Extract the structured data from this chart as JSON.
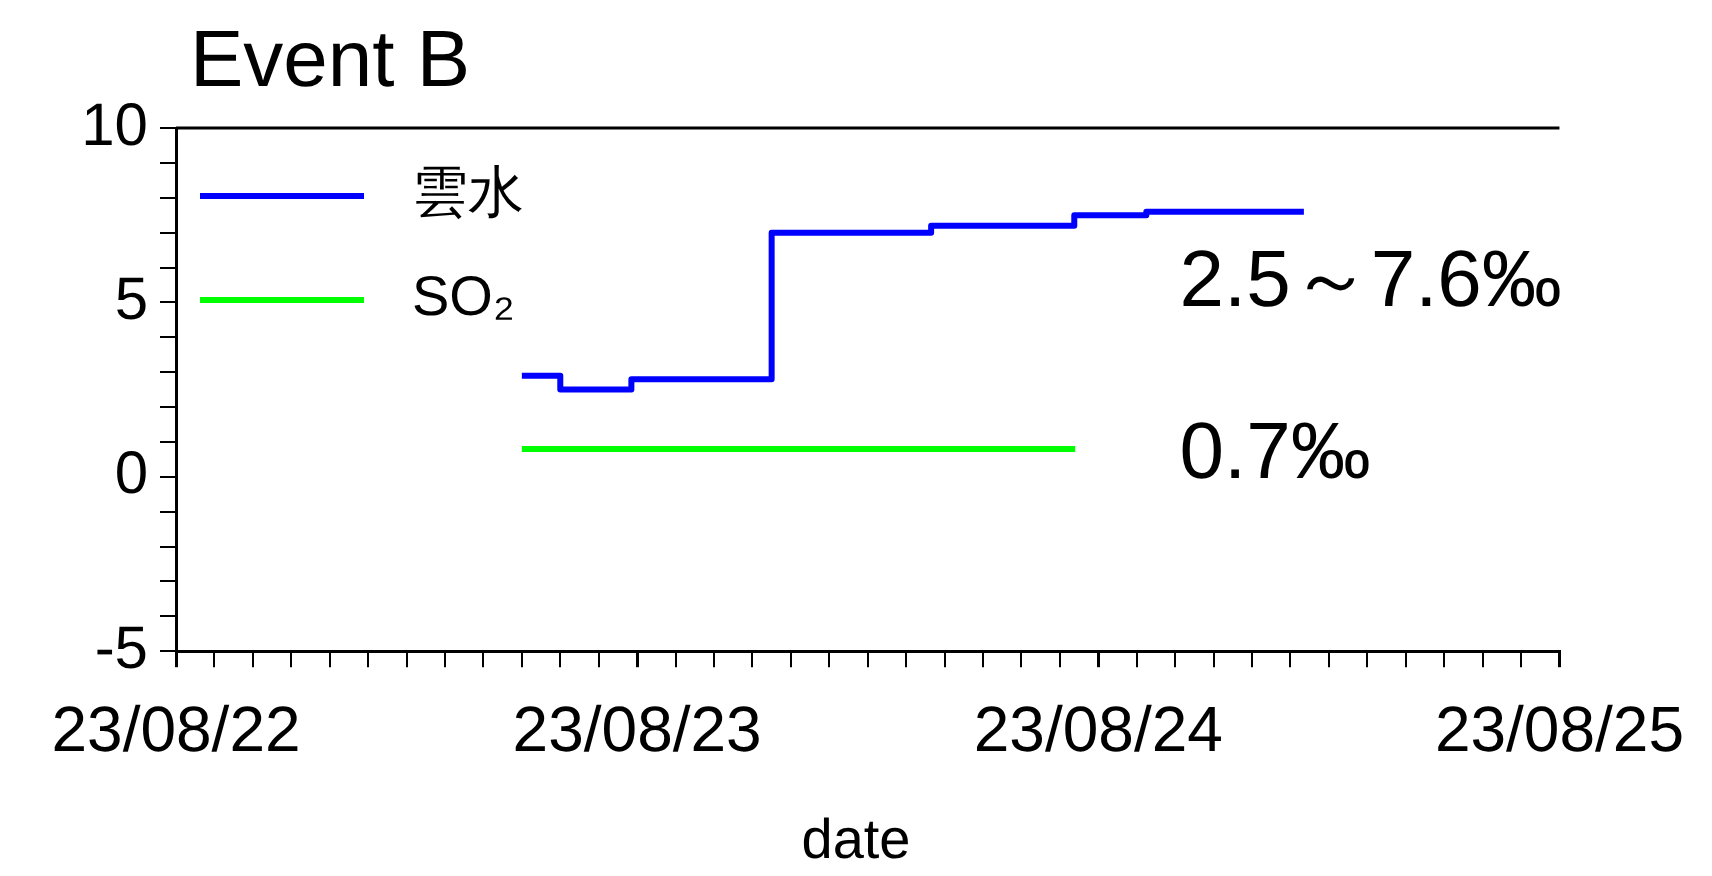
{
  "chart_data": {
    "type": "step",
    "title": "Event B",
    "xlabel": "date",
    "xlim": [
      "--08-22T00:00",
      "--08-25T00:00"
    ],
    "xticks": [
      {
        "value": "--08-22T00:00",
        "label": "23/08/22"
      },
      {
        "value": "--08-22T02:00",
        "label": null
      },
      {
        "value": "--08-22T04:00",
        "label": null
      },
      {
        "value": "--08-22T06:00",
        "label": null
      },
      {
        "value": "--08-22T08:00",
        "label": null
      },
      {
        "value": "--08-22T10:00",
        "label": null
      },
      {
        "value": "--08-22T12:00",
        "label": null
      },
      {
        "value": "--08-22T14:00",
        "label": null
      },
      {
        "value": "--08-22T16:00",
        "label": null
      },
      {
        "value": "--08-22T18:00",
        "label": null
      },
      {
        "value": "--08-22T20:00",
        "label": null
      },
      {
        "value": "--08-22T22:00",
        "label": null
      },
      {
        "value": "--08-23T00:00",
        "label": "23/08/23"
      },
      {
        "value": "--08-23T02:00",
        "label": null
      },
      {
        "value": "--08-23T04:00",
        "label": null
      },
      {
        "value": "--08-23T06:00",
        "label": null
      },
      {
        "value": "--08-23T08:00",
        "label": null
      },
      {
        "value": "--08-23T10:00",
        "label": null
      },
      {
        "value": "--08-23T12:00",
        "label": null
      },
      {
        "value": "--08-23T14:00",
        "label": null
      },
      {
        "value": "--08-23T16:00",
        "label": null
      },
      {
        "value": "--08-23T18:00",
        "label": null
      },
      {
        "value": "--08-23T20:00",
        "label": null
      },
      {
        "value": "--08-23T22:00",
        "label": null
      },
      {
        "value": "--08-24T00:00",
        "label": "23/08/24"
      },
      {
        "value": "--08-24T02:00",
        "label": null
      },
      {
        "value": "--08-24T04:00",
        "label": null
      },
      {
        "value": "--08-24T06:00",
        "label": null
      },
      {
        "value": "--08-24T08:00",
        "label": null
      },
      {
        "value": "--08-24T10:00",
        "label": null
      },
      {
        "value": "--08-24T12:00",
        "label": null
      },
      {
        "value": "--08-24T14:00",
        "label": null
      },
      {
        "value": "--08-24T16:00",
        "label": null
      },
      {
        "value": "--08-24T18:00",
        "label": null
      },
      {
        "value": "--08-24T20:00",
        "label": null
      },
      {
        "value": "--08-24T22:00",
        "label": null
      },
      {
        "value": "--08-25T00:00",
        "label": "23/08/25"
      }
    ],
    "ylim": [
      -5,
      10
    ],
    "yticks": [
      -5,
      {
        "value": -4,
        "label": null
      },
      {
        "value": -3,
        "label": null
      },
      {
        "value": -2,
        "label": null
      },
      {
        "value": -1,
        "label": null
      },
      0,
      {
        "value": 1,
        "label": null
      },
      {
        "value": 2,
        "label": null
      },
      {
        "value": 3,
        "label": null
      },
      {
        "value": 4,
        "label": null
      },
      5,
      {
        "value": 6,
        "label": null
      },
      {
        "value": 7,
        "label": null
      },
      {
        "value": 8,
        "label": null
      },
      {
        "value": 9,
        "label": null
      },
      10
    ],
    "series": [
      {
        "name": "雲水",
        "color": "#0000ff",
        "x": [
          "--08-22T18:00",
          "--08-22T20:00",
          "--08-22T23:42",
          "--08-23T07:00",
          "--08-23T15:18",
          "--08-23T22:45",
          "--08-24T02:30",
          "--08-24T10:42"
        ],
        "values": [
          2.9,
          2.5,
          2.8,
          7.0,
          7.2,
          7.5,
          7.6,
          7.6
        ]
      },
      {
        "name": "SO₂",
        "color": "#00ff00",
        "x": [
          "--08-22T18:00",
          "--08-23T22:48"
        ],
        "values": [
          0.8,
          0.8
        ]
      }
    ],
    "annotations": [
      "2.5～7.6‰",
      "0.7‰"
    ],
    "legend": "top left",
    "grid": false,
    "marker": "none",
    "line_style": "solid"
  }
}
